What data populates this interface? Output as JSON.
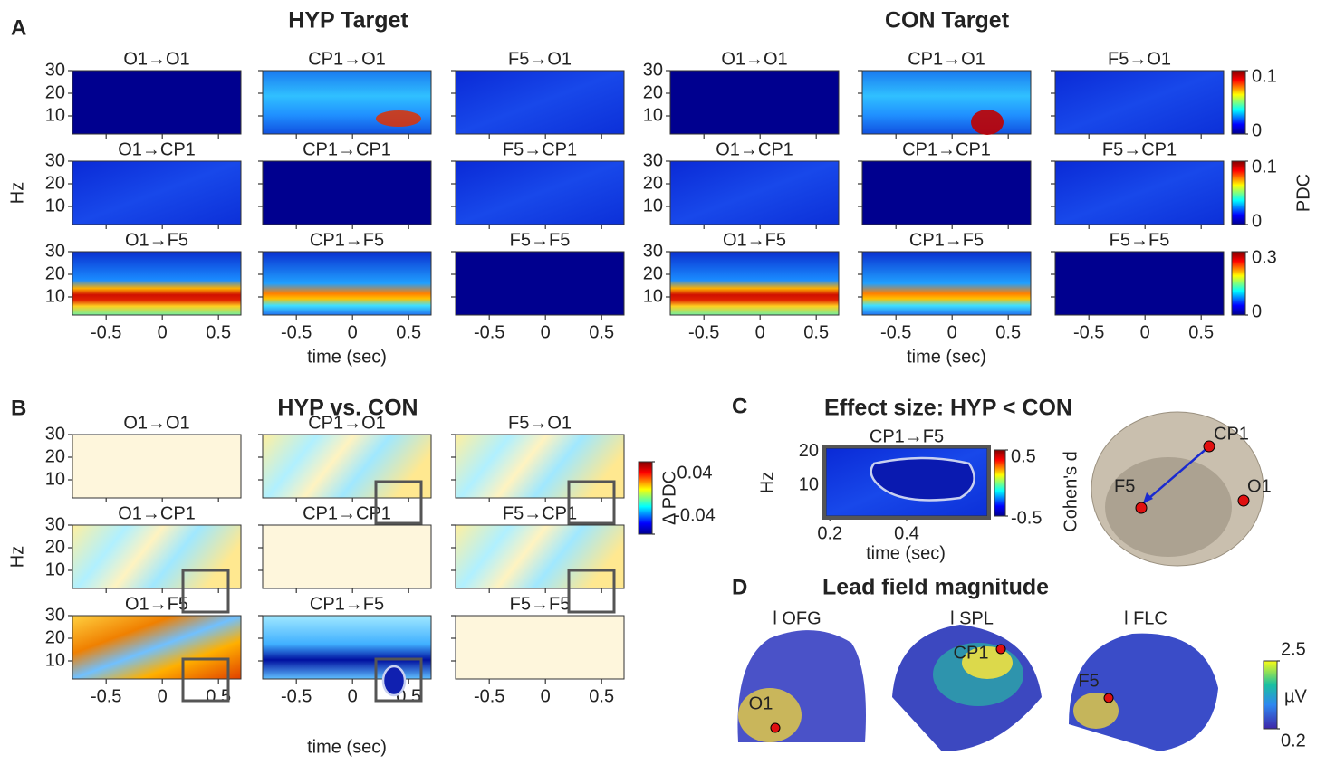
{
  "panel_a": {
    "label": "A",
    "xlabel": "time (sec)",
    "ylabel": "Hz",
    "xlim": [
      -0.8,
      0.7
    ],
    "ylim": [
      2,
      30
    ],
    "xticks": [
      -0.5,
      0,
      0.5
    ],
    "yticks": [
      10,
      20,
      30
    ],
    "groups": [
      {
        "title": "HYP Target",
        "subplots": [
          [
            "O1→O1",
            "CP1→O1",
            "F5→O1"
          ],
          [
            "O1→CP1",
            "CP1→CP1",
            "F5→CP1"
          ],
          [
            "O1→F5",
            "CP1→F5",
            "F5→F5"
          ]
        ]
      },
      {
        "title": "CON Target",
        "subplots": [
          [
            "O1→O1",
            "CP1→O1",
            "F5→O1"
          ],
          [
            "O1→CP1",
            "CP1→CP1",
            "F5→CP1"
          ],
          [
            "O1→F5",
            "CP1→F5",
            "F5→F5"
          ]
        ]
      }
    ],
    "colorbar": {
      "label": "PDC",
      "rows": [
        {
          "lim": [
            0,
            0.1
          ],
          "ticks": [
            0,
            0.1
          ]
        },
        {
          "lim": [
            0,
            0.1
          ],
          "ticks": [
            0,
            0.1
          ]
        },
        {
          "lim": [
            0,
            0.3
          ],
          "ticks": [
            0,
            0.3
          ]
        }
      ]
    }
  },
  "panel_b": {
    "label": "B",
    "title": "HYP vs. CON",
    "xlabel": "time (sec)",
    "ylabel": "Hz",
    "xlim": [
      -0.8,
      0.7
    ],
    "ylim": [
      2,
      30
    ],
    "xticks": [
      -0.5,
      0,
      0.5
    ],
    "yticks": [
      10,
      20,
      30
    ],
    "subplots": [
      [
        "O1→O1",
        "CP1→O1",
        "F5→O1"
      ],
      [
        "O1→CP1",
        "CP1→CP1",
        "F5→CP1"
      ],
      [
        "O1→F5",
        "CP1→F5",
        "F5→F5"
      ]
    ],
    "colorbar": {
      "label": "Δ PDC",
      "lim": [
        -0.04,
        0.04
      ],
      "ticks": [
        -0.04,
        0.04
      ]
    }
  },
  "panel_c": {
    "label": "C",
    "title": "Effect size: HYP < CON",
    "subplot": "CP1→F5",
    "xlabel": "time (sec)",
    "ylabel": "Hz",
    "xlim": [
      0.19,
      0.61
    ],
    "ylim": [
      1,
      21
    ],
    "xticks": [
      0.2,
      0.4
    ],
    "yticks": [
      10,
      20
    ],
    "colorbar": {
      "label": "Cohen's d",
      "lim": [
        -0.5,
        0.5
      ],
      "ticks": [
        -0.5,
        0.5
      ]
    },
    "electrodes": [
      "CP1",
      "F5",
      "O1"
    ]
  },
  "panel_d": {
    "label": "D",
    "title": "Lead field magnitude",
    "maps": [
      {
        "title": "l OFG",
        "electrode": "O1"
      },
      {
        "title": "l SPL",
        "electrode": "CP1"
      },
      {
        "title": "l FLC",
        "electrode": "F5"
      }
    ],
    "colorbar": {
      "unit": "µV",
      "lim": [
        0.2,
        2.5
      ],
      "ticks": [
        0.2,
        2.5
      ]
    }
  }
}
